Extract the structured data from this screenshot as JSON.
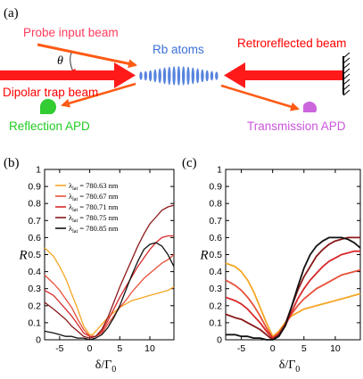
{
  "schematic": {
    "panel_label": "(a)",
    "probe_label": "Probe input beam",
    "theta_label": "θ",
    "atoms_label": "Rb atoms",
    "retro_label": "Retroreflected beam",
    "dipolar_label": "Dipolar trap beam",
    "reflection_apd_label": "Reflection APD",
    "transmission_apd_label": "Transmission APD",
    "colors": {
      "probe": "#ff3b5c",
      "atoms": "#3a6fd8",
      "retro": "#ff0000",
      "dipolar": "#ff0000",
      "reflection": "#22cc22",
      "transmission": "#cc55dd",
      "beam_red": "#ff1a1a",
      "beam_orange": "#ff5a14"
    }
  },
  "chart_data": [
    {
      "panel_label": "(b)",
      "type": "line",
      "xlabel": "δ/Γ",
      "xlabel_sub": "0",
      "ylabel": "R",
      "xlim": [
        -7.5,
        14
      ],
      "ylim": [
        0,
        1
      ],
      "x_ticks": [
        -5,
        0,
        5,
        10
      ],
      "y_ticks": [
        0,
        0.1,
        0.2,
        0.3,
        0.4,
        0.5,
        0.6,
        0.7,
        0.8,
        0.9,
        1
      ],
      "legend_position": "top-left",
      "legend_prefix": "λ",
      "legend_sub": "lat",
      "series": [
        {
          "name": "780.63 nm",
          "color": "#f5a623",
          "x": [
            -7.5,
            -6,
            -5,
            -4,
            -3,
            -2,
            -1,
            0,
            0.5,
            1,
            2,
            3,
            4,
            5,
            6,
            7,
            8,
            9,
            10,
            11,
            12,
            13,
            14
          ],
          "y": [
            0.54,
            0.49,
            0.43,
            0.36,
            0.27,
            0.18,
            0.08,
            0.03,
            0.03,
            0.05,
            0.09,
            0.13,
            0.16,
            0.19,
            0.21,
            0.23,
            0.24,
            0.25,
            0.26,
            0.27,
            0.28,
            0.29,
            0.31
          ]
        },
        {
          "name": "780.67 nm",
          "color": "#e8503a",
          "x": [
            -7.5,
            -6,
            -5,
            -4,
            -3,
            -2,
            -1,
            0,
            1,
            2,
            3,
            4,
            5,
            6,
            7,
            8,
            9,
            10,
            11,
            12,
            13,
            14
          ],
          "y": [
            0.38,
            0.33,
            0.29,
            0.24,
            0.19,
            0.12,
            0.06,
            0.02,
            0.02,
            0.04,
            0.09,
            0.14,
            0.19,
            0.23,
            0.28,
            0.32,
            0.36,
            0.39,
            0.42,
            0.45,
            0.47,
            0.5
          ]
        },
        {
          "name": "780.71 nm",
          "color": "#d8282a",
          "x": [
            -7.5,
            -6,
            -5,
            -4,
            -3,
            -2,
            -1,
            0,
            1,
            2,
            3,
            4,
            5,
            6,
            7,
            8,
            9,
            10,
            11,
            12,
            13,
            14
          ],
          "y": [
            0.29,
            0.26,
            0.22,
            0.18,
            0.14,
            0.09,
            0.04,
            0.02,
            0.02,
            0.05,
            0.11,
            0.18,
            0.25,
            0.31,
            0.37,
            0.43,
            0.48,
            0.53,
            0.57,
            0.6,
            0.61,
            0.61
          ]
        },
        {
          "name": "780.75 nm",
          "color": "#8b1a1a",
          "x": [
            -7.5,
            -6,
            -5,
            -4,
            -3,
            -2,
            -1,
            0,
            1,
            2,
            3,
            4,
            5,
            6,
            7,
            8,
            9,
            10,
            11,
            12,
            13,
            14
          ],
          "y": [
            0.22,
            0.18,
            0.15,
            0.12,
            0.08,
            0.05,
            0.02,
            0.01,
            0.02,
            0.06,
            0.13,
            0.22,
            0.31,
            0.39,
            0.47,
            0.55,
            0.62,
            0.68,
            0.72,
            0.76,
            0.78,
            0.79
          ]
        },
        {
          "name": "780.85 nm",
          "color": "#111111",
          "x": [
            -7.5,
            -6,
            -5,
            -4,
            -3,
            -2,
            -1,
            0,
            1,
            2,
            3,
            4,
            5,
            6,
            7,
            8,
            9,
            10,
            11,
            12,
            13,
            14
          ],
          "y": [
            0.05,
            0.04,
            0.03,
            0.02,
            0.02,
            0.01,
            0.01,
            0.0,
            0.01,
            0.03,
            0.07,
            0.13,
            0.2,
            0.29,
            0.38,
            0.46,
            0.53,
            0.56,
            0.57,
            0.55,
            0.5,
            0.43
          ]
        }
      ]
    },
    {
      "panel_label": "(c)",
      "type": "line",
      "xlabel": "δ/Γ",
      "xlabel_sub": "0",
      "ylabel": "R",
      "xlim": [
        -7.5,
        14
      ],
      "ylim": [
        0,
        1
      ],
      "x_ticks": [
        -5,
        0,
        5,
        10
      ],
      "y_ticks": [
        0,
        0.1,
        0.2,
        0.3,
        0.4,
        0.5,
        0.6,
        0.7,
        0.8,
        0.9,
        1
      ],
      "series": [
        {
          "name": "",
          "color": "#f5a623",
          "x": [
            -7.5,
            -6,
            -5,
            -4,
            -3,
            -2,
            -1,
            0,
            1,
            2,
            3,
            4,
            5,
            6,
            7,
            8,
            9,
            10,
            11,
            12,
            13,
            14
          ],
          "y": [
            0.45,
            0.43,
            0.4,
            0.35,
            0.28,
            0.19,
            0.1,
            0.02,
            0.05,
            0.1,
            0.14,
            0.16,
            0.18,
            0.19,
            0.2,
            0.21,
            0.22,
            0.23,
            0.24,
            0.25,
            0.26,
            0.27
          ]
        },
        {
          "name": "",
          "color": "#e8503a",
          "x": [
            -7.5,
            -6,
            -5,
            -4,
            -3,
            -2,
            -1,
            0,
            1,
            2,
            3,
            4,
            5,
            6,
            7,
            8,
            9,
            10,
            11,
            12,
            13,
            14
          ],
          "y": [
            0.35,
            0.32,
            0.29,
            0.25,
            0.2,
            0.14,
            0.07,
            0.01,
            0.04,
            0.09,
            0.15,
            0.2,
            0.24,
            0.27,
            0.3,
            0.32,
            0.34,
            0.36,
            0.38,
            0.39,
            0.4,
            0.41
          ]
        },
        {
          "name": "",
          "color": "#d8282a",
          "x": [
            -7.5,
            -6,
            -5,
            -4,
            -3,
            -2,
            -1,
            0,
            1,
            2,
            3,
            4,
            5,
            6,
            7,
            8,
            9,
            10,
            11,
            12,
            13,
            14
          ],
          "y": [
            0.25,
            0.23,
            0.21,
            0.18,
            0.14,
            0.1,
            0.05,
            0.01,
            0.03,
            0.08,
            0.16,
            0.24,
            0.3,
            0.35,
            0.39,
            0.43,
            0.46,
            0.48,
            0.5,
            0.51,
            0.52,
            0.52
          ]
        },
        {
          "name": "",
          "color": "#8b1a1a",
          "x": [
            -7.5,
            -6,
            -5,
            -4,
            -3,
            -2,
            -1,
            0,
            1,
            2,
            3,
            4,
            5,
            6,
            7,
            8,
            9,
            10,
            11,
            12,
            13,
            14
          ],
          "y": [
            0.15,
            0.13,
            0.12,
            0.1,
            0.08,
            0.06,
            0.03,
            0.0,
            0.03,
            0.09,
            0.19,
            0.29,
            0.37,
            0.43,
            0.49,
            0.53,
            0.56,
            0.58,
            0.59,
            0.6,
            0.6,
            0.6
          ]
        },
        {
          "name": "",
          "color": "#111111",
          "x": [
            -7.5,
            -6,
            -5,
            -4,
            -3,
            -2,
            -1,
            0,
            1,
            2,
            3,
            4,
            5,
            6,
            7,
            8,
            9,
            10,
            11,
            12,
            13,
            14
          ],
          "y": [
            0.03,
            0.03,
            0.02,
            0.02,
            0.01,
            0.01,
            0.0,
            0.0,
            0.02,
            0.08,
            0.19,
            0.31,
            0.42,
            0.5,
            0.55,
            0.58,
            0.6,
            0.6,
            0.6,
            0.59,
            0.57,
            0.54
          ]
        }
      ]
    }
  ]
}
